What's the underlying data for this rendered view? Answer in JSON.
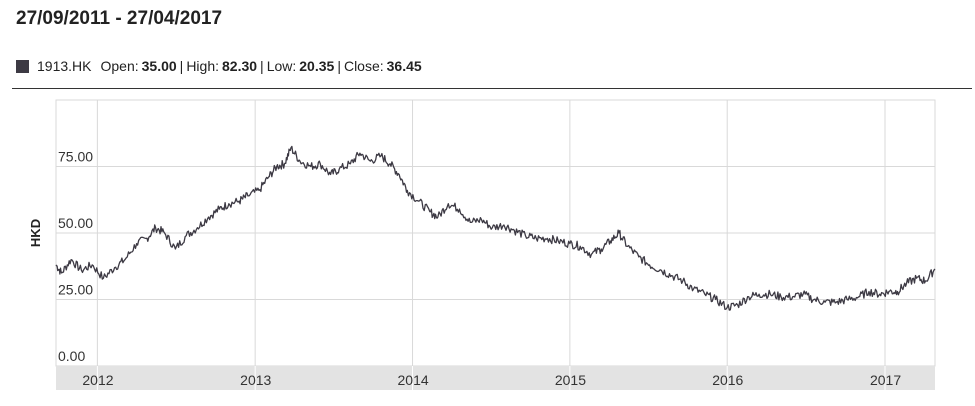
{
  "header": {
    "title": "27/09/2011 - 27/04/2017"
  },
  "legend": {
    "ticker": "1913.HK",
    "open_label": "Open:",
    "open_value": "35.00",
    "high_label": "High:",
    "high_value": "82.30",
    "low_label": "Low:",
    "low_value": "20.35",
    "close_label": "Close:",
    "close_value": "36.45",
    "separator": "|",
    "swatch_color": "#3d3a44"
  },
  "chart_data": {
    "type": "line",
    "title": "",
    "xlabel": "",
    "ylabel": "HKD",
    "ylim": [
      0,
      100
    ],
    "y_ticks": [
      "0.00",
      "25.00",
      "50.00",
      "75.00"
    ],
    "x_ticks": [
      "2012",
      "2013",
      "2014",
      "2015",
      "2016",
      "2017"
    ],
    "x_range": [
      "2011-09-27",
      "2017-04-27"
    ],
    "grid": true,
    "legend": "top-left",
    "series": [
      {
        "name": "1913.HK",
        "color": "#3d3a44",
        "x": [
          "2011-09-27",
          "2011-10-10",
          "2011-11-01",
          "2011-11-25",
          "2011-12-20",
          "2012-01-15",
          "2012-02-10",
          "2012-03-05",
          "2012-04-01",
          "2012-04-25",
          "2012-05-15",
          "2012-06-05",
          "2012-06-30",
          "2012-07-25",
          "2012-08-20",
          "2012-09-15",
          "2012-10-10",
          "2012-11-01",
          "2012-11-25",
          "2012-12-15",
          "2013-01-10",
          "2013-02-01",
          "2013-02-20",
          "2013-03-10",
          "2013-03-25",
          "2013-04-15",
          "2013-05-10",
          "2013-06-01",
          "2013-06-25",
          "2013-07-15",
          "2013-08-10",
          "2013-09-01",
          "2013-09-25",
          "2013-10-20",
          "2013-11-10",
          "2013-12-01",
          "2013-12-20",
          "2014-01-15",
          "2014-02-10",
          "2014-03-01",
          "2014-03-25",
          "2014-04-20",
          "2014-05-15",
          "2014-06-10",
          "2014-07-05",
          "2014-08-01",
          "2014-08-25",
          "2014-09-20",
          "2014-10-15",
          "2014-11-10",
          "2014-12-05",
          "2015-01-01",
          "2015-01-25",
          "2015-02-20",
          "2015-03-15",
          "2015-04-05",
          "2015-04-25",
          "2015-05-15",
          "2015-06-10",
          "2015-07-05",
          "2015-08-01",
          "2015-08-25",
          "2015-09-20",
          "2015-10-15",
          "2015-11-10",
          "2015-12-05",
          "2016-01-01",
          "2016-01-25",
          "2016-02-20",
          "2016-03-15",
          "2016-04-10",
          "2016-05-05",
          "2016-06-01",
          "2016-06-25",
          "2016-07-20",
          "2016-08-15",
          "2016-09-10",
          "2016-10-05",
          "2016-11-01",
          "2016-11-25",
          "2016-12-20",
          "2017-01-10",
          "2017-01-30",
          "2017-02-20",
          "2017-03-15",
          "2017-04-05",
          "2017-04-27"
        ],
        "values": [
          38,
          35,
          40,
          36,
          38,
          33,
          37,
          40,
          46,
          48,
          52,
          50,
          44,
          49,
          52,
          56,
          59,
          61,
          62,
          64,
          66,
          71,
          75,
          76,
          82,
          77,
          75,
          76,
          72,
          74,
          76,
          80,
          77,
          79,
          76,
          72,
          66,
          62,
          58,
          56,
          61,
          59,
          54,
          55,
          52,
          53,
          51,
          49,
          48,
          48,
          47,
          46,
          45,
          42,
          44,
          47,
          50,
          45,
          41,
          38,
          36,
          34,
          32,
          29,
          27,
          25,
          22,
          23,
          26,
          27,
          27,
          26,
          26,
          27,
          25,
          24,
          24,
          25,
          26,
          28,
          27,
          28,
          28,
          31,
          33,
          32,
          36.45
        ]
      }
    ]
  }
}
